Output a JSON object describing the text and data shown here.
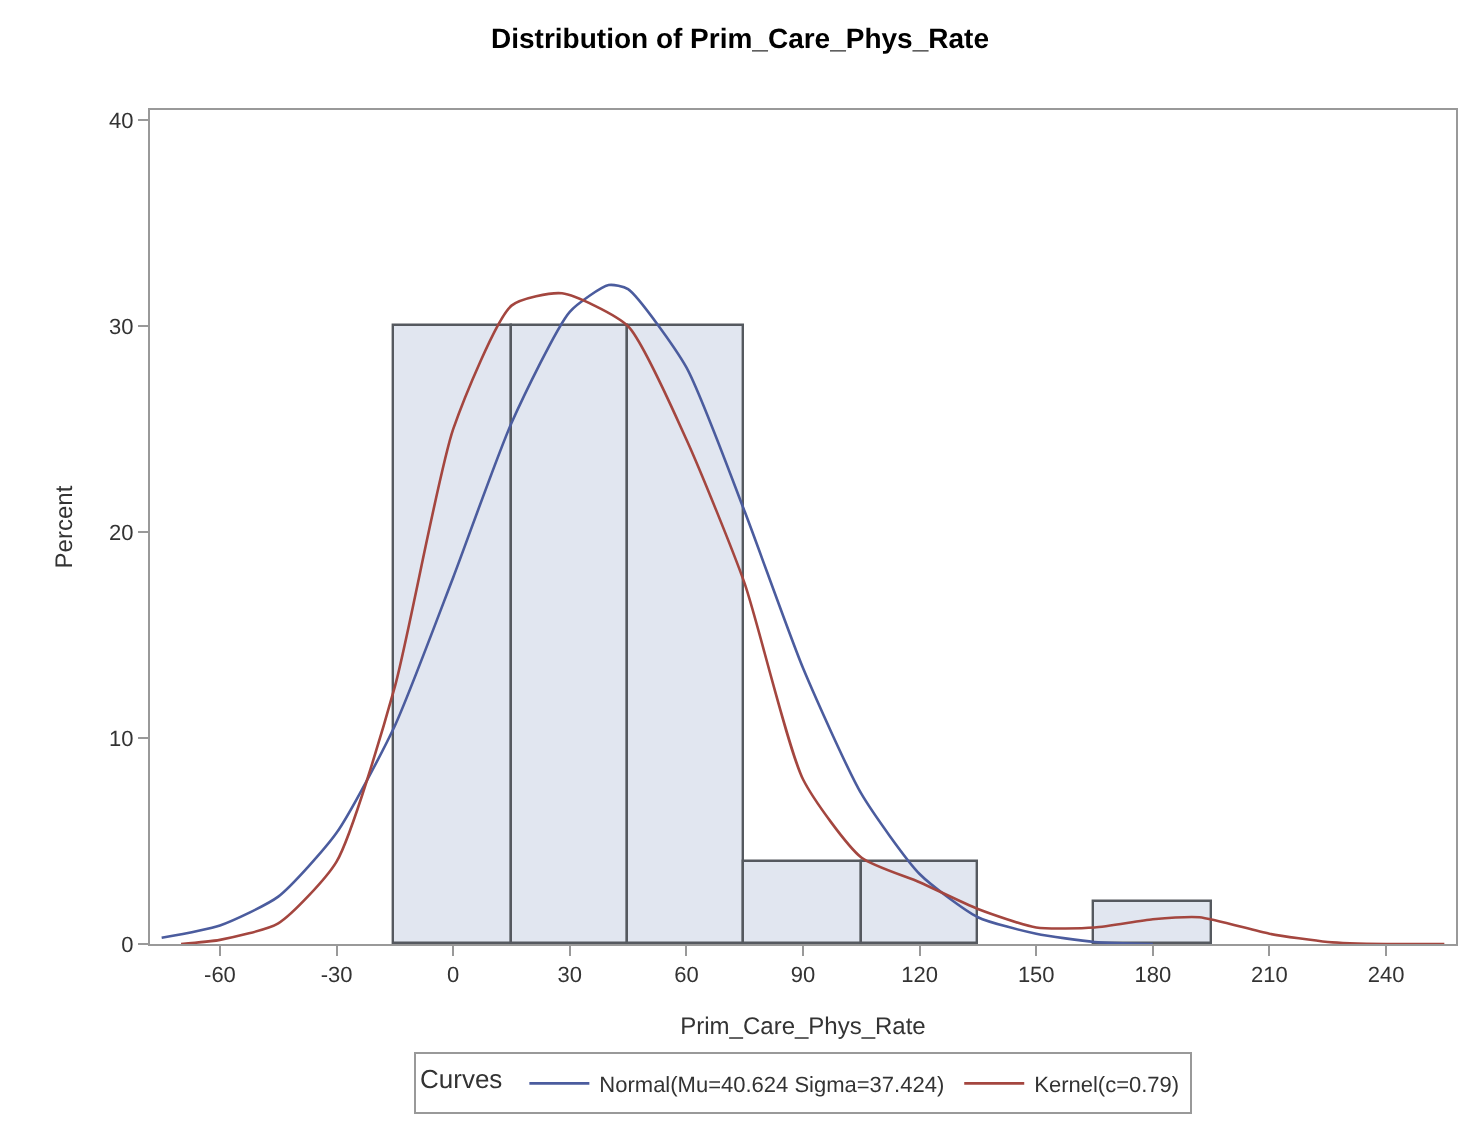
{
  "chart_data": {
    "type": "histogram",
    "title": "Distribution of Prim_Care_Phys_Rate",
    "xlabel": "Prim_Care_Phys_Rate",
    "ylabel": "Percent",
    "legend_title": "Curves",
    "bins": [
      -15,
      15,
      45,
      75,
      105,
      135,
      165,
      195
    ],
    "values": [
      30,
      30,
      30,
      4,
      4,
      0,
      2
    ],
    "color": "#e1e6f0",
    "series": [
      {
        "type": "line",
        "name": "Normal(Mu=40.624 Sigma=37.424)",
        "color": "#4b5c9e",
        "x": [
          -75,
          -60,
          -45,
          -30,
          -15,
          0,
          15,
          30,
          40,
          45,
          60,
          75,
          90,
          105,
          120,
          135,
          150,
          165,
          180
        ],
        "values": [
          0.3,
          0.9,
          2.3,
          5.4,
          10.6,
          17.8,
          25.3,
          30.7,
          32,
          31.8,
          28,
          21,
          13.4,
          7.3,
          3.4,
          1.3,
          0.5,
          0.1,
          0
        ]
      },
      {
        "type": "line",
        "name": "Kernel(c=0.79)",
        "color": "#a4463f",
        "x": [
          -70,
          -60,
          -45,
          -30,
          -15,
          0,
          15,
          28,
          45,
          60,
          75,
          90,
          105,
          120,
          135,
          150,
          165,
          180,
          192,
          210,
          225,
          240,
          255
        ],
        "values": [
          0,
          0.2,
          1,
          4,
          12.5,
          25,
          31,
          31.6,
          30,
          24.5,
          17.5,
          8,
          4.2,
          3,
          1.7,
          0.8,
          0.8,
          1.2,
          1.3,
          0.5,
          0.1,
          0,
          0
        ]
      }
    ],
    "xlim": [
      -78,
      258
    ],
    "xticks": [
      -60,
      -30,
      0,
      30,
      60,
      90,
      120,
      150,
      180,
      210,
      240
    ],
    "ylim": [
      0,
      40.5
    ],
    "yticks": [
      0,
      10,
      20,
      30,
      40
    ],
    "legend": "bottom"
  }
}
